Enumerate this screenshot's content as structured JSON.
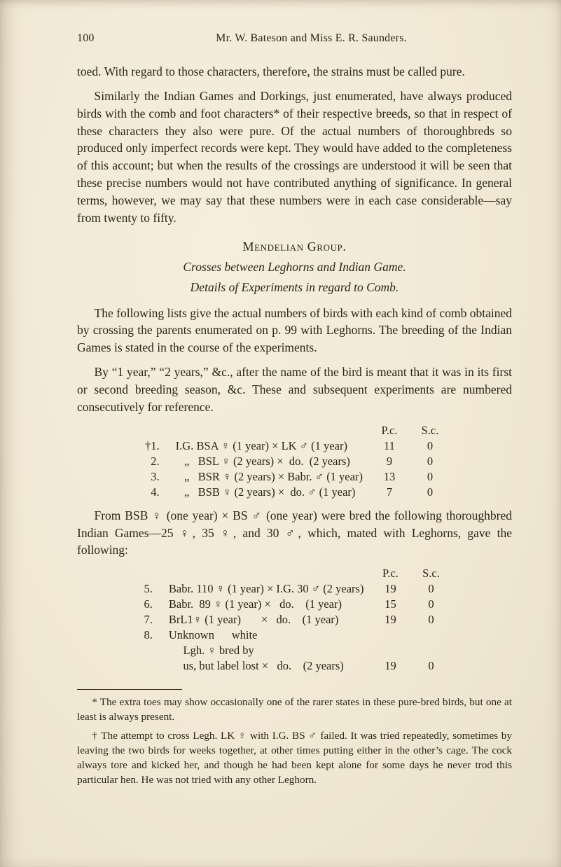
{
  "page_number": "100",
  "running_head": "Mr. W. Bateson and Miss E. R. Saunders.",
  "para1": "toed. With regard to those characters, therefore, the strains must be called pure.",
  "para2": "Similarly the Indian Games and Dorkings, just enumerated, have always produced birds with the comb and foot characters* of their respective breeds, so that in respect of these characters they also were pure. Of the actual numbers of thoroughbreds so produced only imperfect records were kept. They would have added to the completeness of this account; but when the results of the crossings are understood it will be seen that these precise numbers would not have contributed anything of significance. In general terms, however, we may say that these numbers were in each case considerable—say from twenty to fifty.",
  "section_title": "Mendelian Group.",
  "subsection_title": "Crosses between Leghorns and Indian Game.",
  "subsub_title": "Details of Experiments in regard to Comb.",
  "para3": "The following lists give the actual numbers of birds with each kind of comb obtained by crossing the parents enumerated on p. 99 with Leghorns. The breeding of the Indian Games is stated in the course of the experiments.",
  "para4": "By “1 year,” “2 years,” &c., after the name of the bird is meant that it was in its first or second breeding season, &c. These and subsequent experiments are numbered consecutively for reference.",
  "table1": {
    "headers": [
      "",
      "",
      "P.c.",
      "S.c."
    ],
    "rows": [
      {
        "idx": "†1.",
        "desc": "I.G. BSA ♀ (1 year) × LK ♂ (1 year)",
        "pc": "11",
        "sc": "0"
      },
      {
        "idx": "2.",
        "desc": "   „   BSL ♀ (2 years) ×  do.  (2 years)",
        "pc": "9",
        "sc": "0"
      },
      {
        "idx": "3.",
        "desc": "   „   BSR ♀ (2 years) × Babr. ♂ (1 year)",
        "pc": "13",
        "sc": "0"
      },
      {
        "idx": "4.",
        "desc": "   „   BSB ♀ (2 years) ×  do. ♂ (1 year)",
        "pc": "7",
        "sc": "0"
      }
    ]
  },
  "para5": "From BSB ♀ (one year) × BS ♂ (one year) were bred the following thoroughbred Indian Games—25 ♀, 35 ♀, and 30 ♂, which, mated with Leghorns, gave the following:",
  "table2": {
    "headers": [
      "",
      "",
      "P.c.",
      "S.c."
    ],
    "rows": [
      {
        "idx": "5.",
        "desc": "Babr. 110 ♀ (1 year) × I.G. 30 ♂ (2 years)",
        "pc": "19",
        "sc": "0"
      },
      {
        "idx": "6.",
        "desc": "Babr.  89 ♀ (1 year) ×   do.    (1 year)",
        "pc": "15",
        "sc": "0"
      },
      {
        "idx": "7.",
        "desc": "BrL1♀ (1 year)       ×   do.    (1 year)",
        "pc": "19",
        "sc": "0"
      },
      {
        "idx": "8.",
        "desc": "Unknown      white",
        "pc": "",
        "sc": ""
      },
      {
        "idx": "",
        "desc": "     Lgh. ♀ bred by",
        "pc": "",
        "sc": ""
      },
      {
        "idx": "",
        "desc": "     us, but label lost ×   do.    (2 years)",
        "pc": "19",
        "sc": "0"
      }
    ]
  },
  "footnote1": "* The extra toes may show occasionally one of the rarer states in these pure-bred birds, but one at least is always present.",
  "footnote2": "† The attempt to cross Legh. LK ♀ with I.G. BS ♂ failed. It was tried repeatedly, sometimes by leaving the two birds for weeks together, at other times putting either in the other’s cage. The cock always tore and kicked her, and though he had been kept alone for some days he never trod this particular hen. He was not tried with any other Leghorn."
}
